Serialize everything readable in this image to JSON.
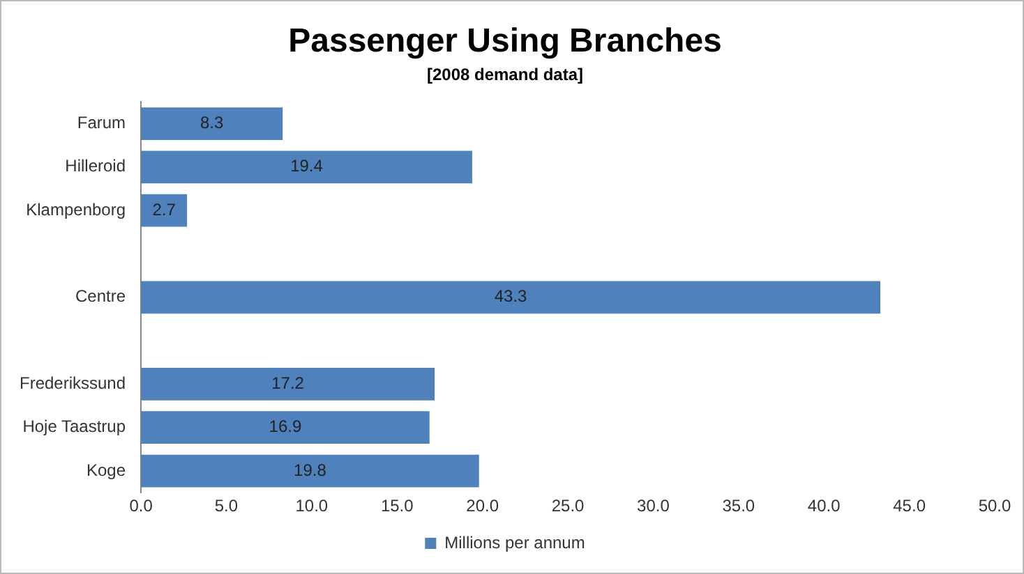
{
  "chart_data": {
    "type": "bar",
    "orientation": "horizontal",
    "title": "Passenger Using Branches",
    "subtitle": "[2008 demand data]",
    "categories": [
      "Farum",
      "Hilleroid",
      "Klampenborg",
      null,
      "Centre",
      null,
      "Frederikssund",
      "Hoje Taastrup",
      "Koge"
    ],
    "series": [
      {
        "name": "Millions per annum",
        "color": "#4f81bd",
        "values": [
          8.3,
          19.4,
          2.7,
          null,
          43.3,
          null,
          17.2,
          16.9,
          19.8
        ]
      }
    ],
    "xlim": [
      0,
      50
    ],
    "xticks": [
      {
        "value": 0,
        "label": "0.0"
      },
      {
        "value": 5,
        "label": "5.0"
      },
      {
        "value": 10,
        "label": "10.0"
      },
      {
        "value": 15,
        "label": "15.0"
      },
      {
        "value": 20,
        "label": "20.0"
      },
      {
        "value": 25,
        "label": "25.0"
      },
      {
        "value": 30,
        "label": "30.0"
      },
      {
        "value": 35,
        "label": "35.0"
      },
      {
        "value": 40,
        "label": "40.0"
      },
      {
        "value": 45,
        "label": "45.0"
      },
      {
        "value": 50,
        "label": "50.0"
      }
    ],
    "data_labels": true,
    "legend": "bottom",
    "grid": false
  }
}
